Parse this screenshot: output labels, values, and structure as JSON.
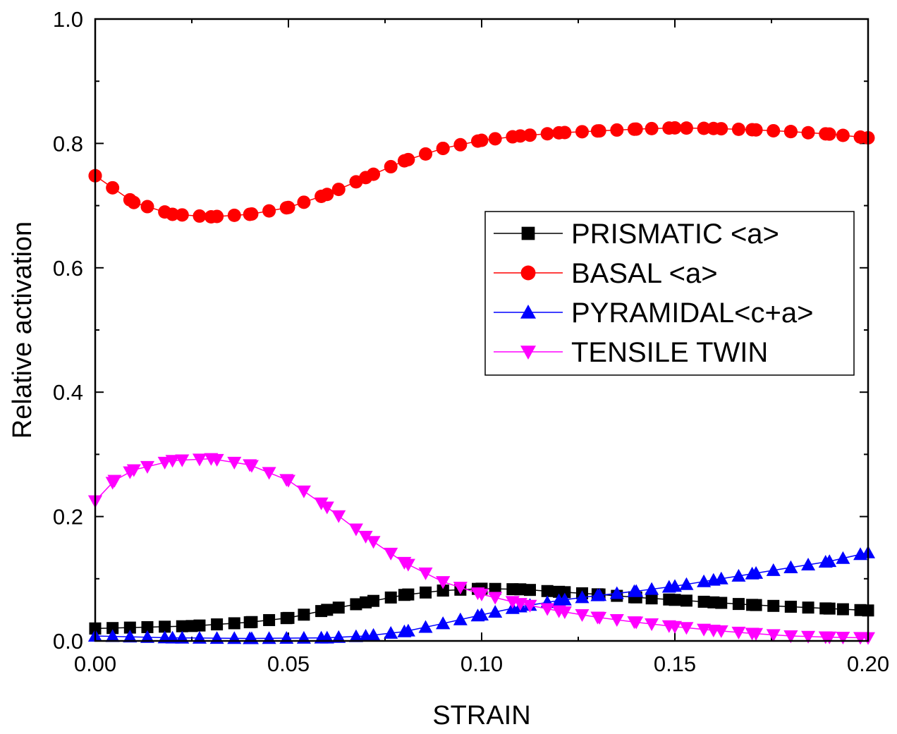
{
  "chart_data": {
    "type": "line",
    "xlabel": "STRAIN",
    "ylabel": "Relative activation",
    "xlim": [
      0.0,
      0.2
    ],
    "ylim": [
      0.0,
      1.0
    ],
    "xticks": [
      "0.00",
      "0.05",
      "0.10",
      "0.15",
      "0.20"
    ],
    "yticks": [
      "0.0",
      "0.2",
      "0.4",
      "0.6",
      "0.8",
      "1.0"
    ],
    "legend_position": "center-right",
    "series": [
      {
        "name": "PRISMATIC <a>",
        "marker": "square",
        "color": "#000000",
        "x": [
          0.0,
          0.025,
          0.04,
          0.05,
          0.06,
          0.07,
          0.08,
          0.09,
          0.1,
          0.11,
          0.12,
          0.13,
          0.14,
          0.15,
          0.16,
          0.17,
          0.18,
          0.19,
          0.2
        ],
        "y": [
          0.02,
          0.024,
          0.03,
          0.037,
          0.05,
          0.062,
          0.074,
          0.081,
          0.084,
          0.083,
          0.079,
          0.075,
          0.07,
          0.066,
          0.062,
          0.058,
          0.055,
          0.052,
          0.049
        ]
      },
      {
        "name": "BASAL <a>",
        "marker": "circle",
        "color": "#ff0000",
        "x": [
          0.0,
          0.01,
          0.02,
          0.03,
          0.04,
          0.05,
          0.06,
          0.07,
          0.08,
          0.09,
          0.1,
          0.11,
          0.12,
          0.13,
          0.14,
          0.15,
          0.16,
          0.17,
          0.18,
          0.19,
          0.2
        ],
        "y": [
          0.748,
          0.705,
          0.686,
          0.682,
          0.686,
          0.697,
          0.718,
          0.745,
          0.772,
          0.792,
          0.805,
          0.812,
          0.817,
          0.82,
          0.823,
          0.825,
          0.824,
          0.822,
          0.819,
          0.815,
          0.809
        ]
      },
      {
        "name": "PYRAMIDAL<c+a>",
        "marker": "triangle-up",
        "color": "#0000ff",
        "x": [
          0.0,
          0.02,
          0.04,
          0.06,
          0.07,
          0.08,
          0.09,
          0.1,
          0.11,
          0.12,
          0.13,
          0.14,
          0.15,
          0.16,
          0.17,
          0.18,
          0.19,
          0.2
        ],
        "y": [
          0.008,
          0.005,
          0.004,
          0.005,
          0.008,
          0.015,
          0.028,
          0.042,
          0.055,
          0.065,
          0.073,
          0.08,
          0.088,
          0.098,
          0.108,
          0.118,
          0.128,
          0.142
        ]
      },
      {
        "name": "TENSILE TWIN",
        "marker": "triangle-down",
        "color": "#ff00ff",
        "x": [
          0.0,
          0.005,
          0.01,
          0.02,
          0.03,
          0.04,
          0.05,
          0.06,
          0.07,
          0.08,
          0.09,
          0.1,
          0.11,
          0.12,
          0.13,
          0.14,
          0.15,
          0.16,
          0.17,
          0.18,
          0.19,
          0.2
        ],
        "y": [
          0.225,
          0.258,
          0.275,
          0.29,
          0.293,
          0.283,
          0.258,
          0.215,
          0.168,
          0.126,
          0.095,
          0.075,
          0.06,
          0.048,
          0.038,
          0.03,
          0.023,
          0.017,
          0.012,
          0.008,
          0.006,
          0.005
        ]
      }
    ]
  }
}
